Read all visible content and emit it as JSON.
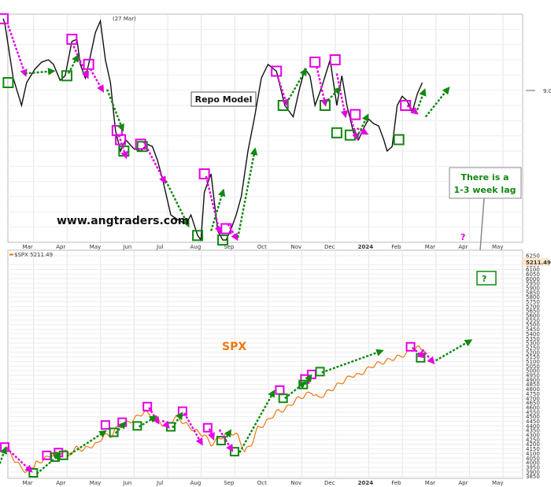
{
  "chart_data": [
    {
      "type": "line",
      "title": "Repo Model",
      "watermark": "www.angtraders.com",
      "top_note": "(27 Mar)",
      "right_value_label": "9.0",
      "months": [
        "Mar",
        "Apr",
        "May",
        "Jun",
        "Jul",
        "Aug",
        "Sep",
        "Oct",
        "Nov",
        "Dec",
        "2024",
        "Feb",
        "Mar",
        "Apr",
        "May"
      ],
      "ylim": [
        0,
        100
      ],
      "series": [
        {
          "name": "Repo Model",
          "x": [
            0,
            0.05,
            0.3,
            0.55,
            0.7,
            0.95,
            1.15,
            1.35,
            1.5,
            1.7,
            1.85,
            2.05,
            2.2,
            2.3,
            2.45,
            2.55,
            2.75,
            2.9,
            3.05,
            3.2,
            3.35,
            3.5,
            3.65,
            3.9,
            4.1,
            4.3,
            4.45,
            4.6,
            4.75,
            5.0,
            5.2,
            5.45,
            5.6,
            5.8,
            5.9,
            6.0,
            6.2,
            6.4,
            6.55,
            6.65,
            6.8,
            6.95,
            7.1,
            7.3,
            7.5,
            7.7,
            7.9,
            8.15,
            8.4,
            8.65,
            8.85,
            9.0,
            9.15,
            9.3,
            9.5,
            9.75,
            9.95,
            10.1,
            10.25,
            10.45,
            10.6,
            10.75,
            10.9,
            11.05,
            11.2,
            11.35,
            11.45,
            11.6,
            11.75,
            11.9,
            12.05,
            12.2,
            12.35,
            12.5
          ],
          "values": [
            98,
            96,
            72,
            60,
            70,
            76,
            79,
            80,
            78,
            71,
            73,
            88,
            89,
            78,
            72,
            78,
            92,
            97,
            80,
            70,
            49,
            40,
            45,
            41,
            40,
            43,
            42,
            36,
            28,
            12,
            10,
            8,
            12,
            3,
            1,
            22,
            30,
            5,
            1,
            1,
            6,
            12,
            20,
            40,
            55,
            72,
            78,
            75,
            60,
            55,
            68,
            76,
            73,
            60,
            68,
            80,
            60,
            73,
            60,
            48,
            45,
            50,
            54,
            52,
            51,
            45,
            40,
            42,
            60,
            64,
            62,
            57,
            65,
            70
          ]
        }
      ],
      "annotations": {
        "peaks": [
          [
            0,
            98
          ],
          [
            2.05,
            89
          ],
          [
            2.55,
            78
          ],
          [
            3.4,
            49
          ],
          [
            3.5,
            45
          ],
          [
            4.1,
            43
          ],
          [
            6.0,
            30
          ],
          [
            6.65,
            6
          ],
          [
            8.15,
            75
          ],
          [
            9.3,
            79
          ],
          [
            9.9,
            80
          ],
          [
            10.5,
            56
          ],
          [
            12.0,
            60
          ]
        ],
        "troughs": [
          [
            0.15,
            70
          ],
          [
            1.9,
            73
          ],
          [
            3.6,
            40
          ],
          [
            4.15,
            42
          ],
          [
            5.8,
            3
          ],
          [
            6.55,
            1
          ],
          [
            8.35,
            60
          ],
          [
            9.6,
            60
          ],
          [
            9.95,
            48
          ],
          [
            10.35,
            47
          ],
          [
            11.8,
            45
          ]
        ],
        "down_arrows": [
          [
            0.15,
            95,
            0.65,
            74
          ],
          [
            2.1,
            86,
            2.5,
            73
          ],
          [
            2.6,
            76,
            2.95,
            67
          ],
          [
            3.45,
            47,
            3.65,
            38
          ],
          [
            4.2,
            44,
            4.8,
            27
          ],
          [
            6.05,
            29,
            6.45,
            5
          ],
          [
            6.7,
            8,
            6.95,
            2
          ],
          [
            8.2,
            72,
            8.45,
            61
          ],
          [
            9.35,
            77,
            9.6,
            61
          ],
          [
            9.95,
            74,
            10.2,
            56
          ],
          [
            10.35,
            55,
            10.55,
            46
          ],
          [
            10.55,
            50,
            10.8,
            48
          ],
          [
            12.05,
            60,
            12.3,
            57
          ]
        ],
        "up_arrows": [
          [
            0.65,
            74,
            1.45,
            75
          ],
          [
            1.95,
            74,
            2.2,
            81
          ],
          [
            3.1,
            67,
            3.55,
            50
          ],
          [
            4.85,
            27,
            5.5,
            8
          ],
          [
            6.2,
            5,
            6.55,
            22
          ],
          [
            7.0,
            2,
            7.5,
            40
          ],
          [
            8.45,
            61,
            9.0,
            75
          ],
          [
            9.6,
            61,
            10.0,
            67
          ],
          [
            10.55,
            46,
            10.85,
            55
          ],
          [
            12.35,
            58,
            12.55,
            66
          ],
          [
            12.6,
            55,
            13.25,
            67
          ]
        ],
        "callout": "There is a\n1-3 week lag",
        "question_marks": [
          "?",
          "?"
        ]
      }
    },
    {
      "type": "line",
      "title": "SPX",
      "legend": "$SPX 5211.49",
      "last_value": "5211.49",
      "months": [
        "Mar",
        "Apr",
        "May",
        "Jun",
        "Jul",
        "Aug",
        "Sep",
        "Oct",
        "Nov",
        "Dec",
        "2024",
        "Feb",
        "Mar",
        "Apr",
        "May"
      ],
      "ylim": [
        3830,
        6310
      ],
      "yticks": [
        6250,
        6150,
        6100,
        6050,
        6000,
        5950,
        5900,
        5850,
        5800,
        5750,
        5700,
        5650,
        5600,
        5550,
        5500,
        5450,
        5400,
        5350,
        5300,
        5250,
        5200,
        5150,
        5100,
        5050,
        5000,
        4950,
        4900,
        4850,
        4800,
        4750,
        4700,
        4650,
        4600,
        4550,
        4500,
        4450,
        4400,
        4350,
        4300,
        4250,
        4200,
        4150,
        4100,
        4050,
        4000,
        3950,
        3900,
        3850
      ],
      "series": [
        {
          "name": "$SPX",
          "x": [
            0,
            0.1,
            0.3,
            0.5,
            0.7,
            0.9,
            1.0,
            1.2,
            1.4,
            1.6,
            1.8,
            2.0,
            2.2,
            2.4,
            2.6,
            2.8,
            3.0,
            3.2,
            3.4,
            3.6,
            3.8,
            4.0,
            4.2,
            4.4,
            4.6,
            4.8,
            5.0,
            5.2,
            5.4,
            5.6,
            5.8,
            6.0,
            6.2,
            6.4,
            6.6,
            6.8,
            7.0,
            7.2,
            7.4,
            7.6,
            7.8,
            8.0,
            8.2,
            8.4,
            8.6,
            8.8,
            9.0,
            9.2,
            9.4,
            9.6,
            9.8,
            10.0,
            10.2,
            10.4,
            10.6,
            10.8,
            11.0,
            11.2,
            11.4,
            11.6,
            11.8,
            12.0,
            12.2,
            12.4,
            12.6
          ],
          "values": [
            4100,
            4170,
            4050,
            3960,
            3900,
            3960,
            4000,
            4030,
            4080,
            4100,
            4120,
            4100,
            4160,
            4140,
            4180,
            4200,
            4300,
            4290,
            4380,
            4420,
            4450,
            4500,
            4550,
            4520,
            4480,
            4400,
            4450,
            4500,
            4430,
            4380,
            4330,
            4300,
            4200,
            4250,
            4300,
            4330,
            4290,
            4120,
            4200,
            4380,
            4420,
            4500,
            4560,
            4580,
            4640,
            4700,
            4730,
            4770,
            4700,
            4750,
            4800,
            4850,
            4900,
            4950,
            4950,
            5000,
            5050,
            5080,
            5100,
            5130,
            5150,
            5180,
            5230,
            5250,
            5211
          ]
        }
      ],
      "annotations": {
        "peaks": [
          [
            0.05,
            4170
          ],
          [
            1.3,
            4080
          ],
          [
            1.65,
            4110
          ],
          [
            3.05,
            4410
          ],
          [
            3.55,
            4440
          ],
          [
            4.3,
            4610
          ],
          [
            5.35,
            4560
          ],
          [
            6.1,
            4380
          ],
          [
            8.25,
            4790
          ],
          [
            9.0,
            4910
          ],
          [
            9.2,
            4960
          ],
          [
            12.15,
            5260
          ]
        ],
        "troughs": [
          [
            0.9,
            3890
          ],
          [
            1.55,
            4060
          ],
          [
            1.8,
            4080
          ],
          [
            3.3,
            4330
          ],
          [
            4.0,
            4400
          ],
          [
            5.0,
            4390
          ],
          [
            6.5,
            4240
          ],
          [
            6.9,
            4120
          ],
          [
            8.35,
            4700
          ],
          [
            8.95,
            4850
          ],
          [
            9.45,
            4990
          ],
          [
            12.45,
            5140
          ]
        ],
        "down_arrows": [
          [
            0.1,
            4160,
            0.8,
            3920
          ],
          [
            4.35,
            4600,
            4.6,
            4450
          ],
          [
            4.75,
            4460,
            4.9,
            4400
          ],
          [
            5.4,
            4540,
            5.9,
            4220
          ],
          [
            6.15,
            4370,
            6.25,
            4280
          ],
          [
            6.45,
            4360,
            6.8,
            4150
          ],
          [
            12.2,
            5250,
            12.5,
            5160
          ],
          [
            12.5,
            5230,
            12.8,
            5100
          ]
        ],
        "up_arrows": [
          [
            -0.1,
            3990,
            0.05,
            4140
          ],
          [
            1.0,
            3880,
            1.65,
            4080
          ],
          [
            1.9,
            4070,
            3.0,
            4330
          ],
          [
            3.35,
            4320,
            3.6,
            4420
          ],
          [
            4.05,
            4390,
            4.5,
            4490
          ],
          [
            5.05,
            4380,
            5.3,
            4520
          ],
          [
            6.6,
            4240,
            6.75,
            4330
          ],
          [
            7.05,
            4110,
            8.05,
            4760
          ],
          [
            8.4,
            4700,
            8.95,
            4860
          ],
          [
            9.0,
            4850,
            9.15,
            4930
          ],
          [
            9.5,
            4980,
            11.25,
            5210
          ],
          [
            12.9,
            5110,
            13.9,
            5320
          ]
        ],
        "question_marks": [
          "?",
          "?"
        ]
      }
    }
  ]
}
